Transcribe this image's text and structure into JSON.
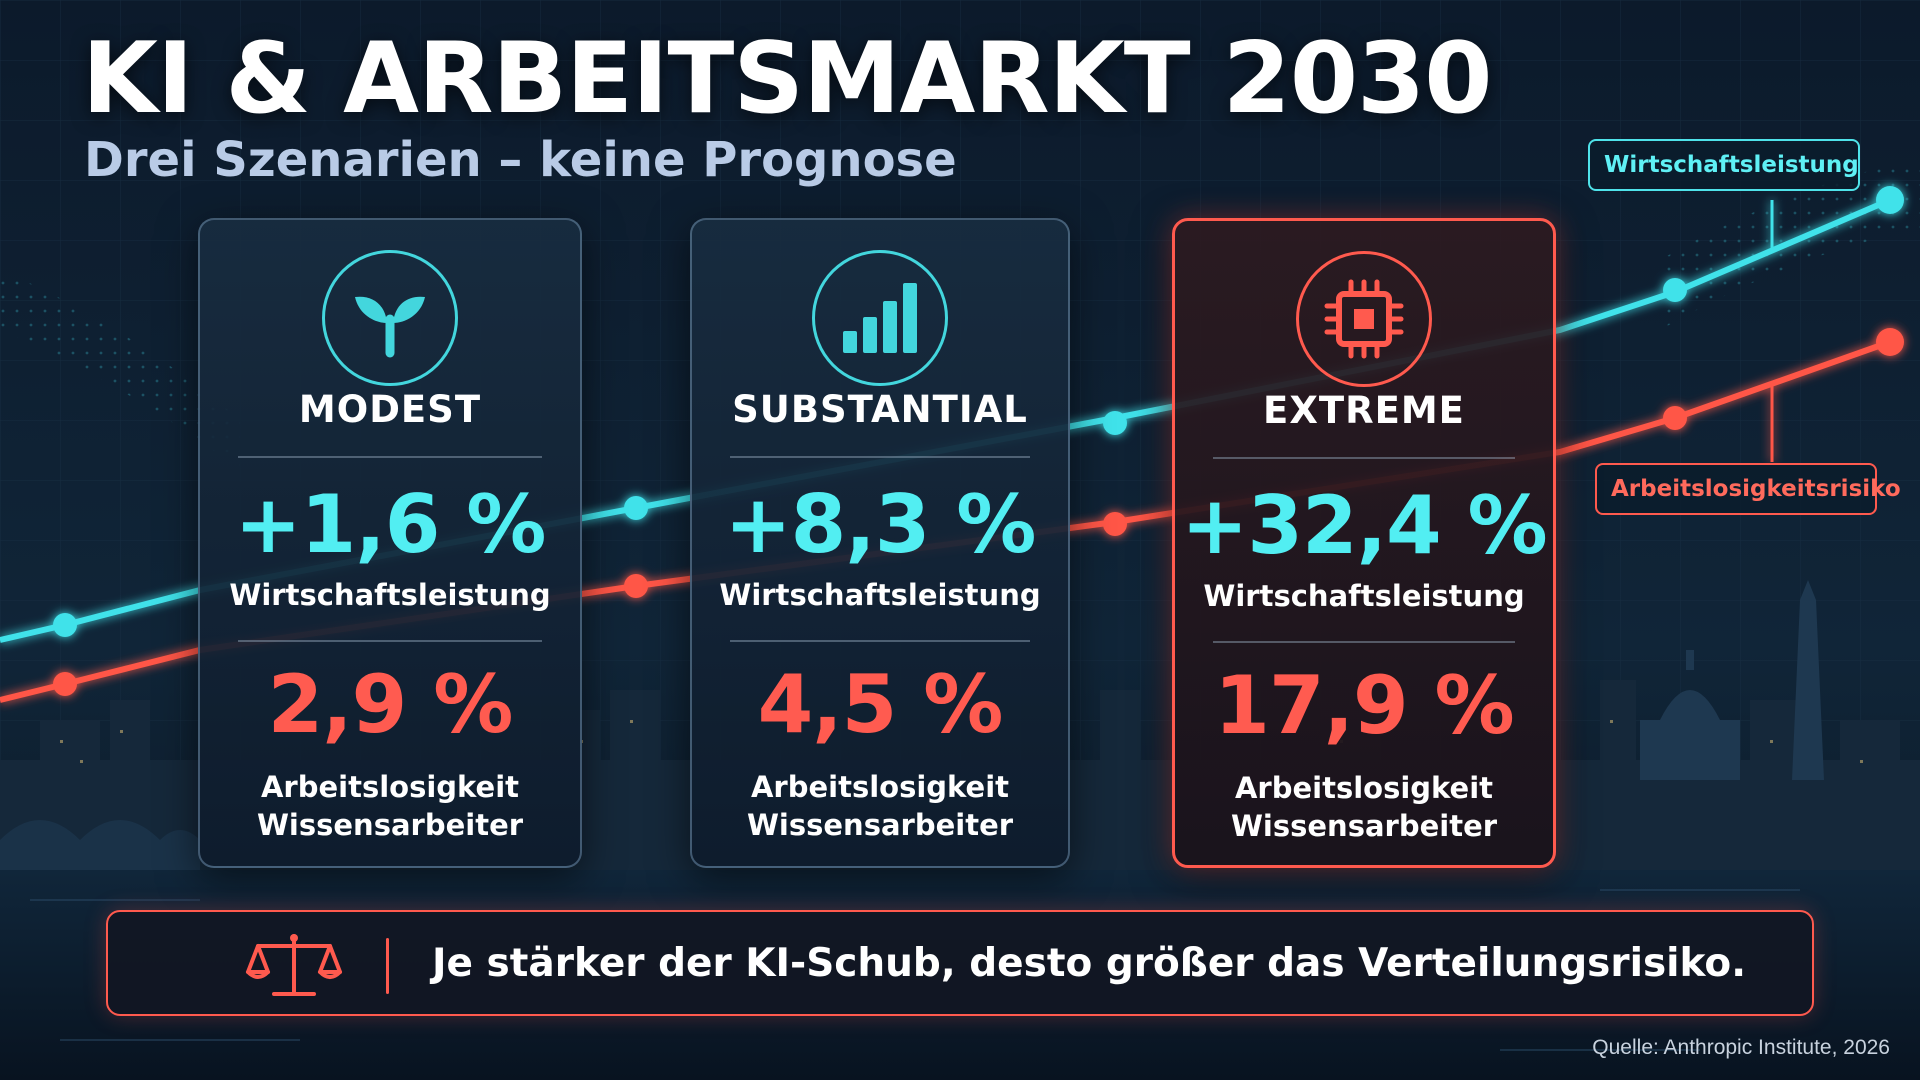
{
  "header": {
    "title": "KI & ARBEITSMARKT 2030",
    "subtitle": "Drei Szenarien – keine Prognose"
  },
  "legend": {
    "economic": "Wirtschaftsleistung",
    "risk": "Arbeitslosigkeitsrisiko"
  },
  "colors": {
    "accent_cyan": "#52eef2",
    "accent_red": "#ff5b50",
    "background": "#0b1828"
  },
  "scenarios": [
    {
      "name": "MODEST",
      "icon": "sprout-icon",
      "economic_value": "+1,6 %",
      "economic_label": "Wirtschaftsleistung",
      "unemployment_value": "2,9 %",
      "unemployment_label_1": "Arbeitslosigkeit",
      "unemployment_label_2": "Wissensarbeiter"
    },
    {
      "name": "SUBSTANTIAL",
      "icon": "bar-chart-icon",
      "economic_value": "+8,3 %",
      "economic_label": "Wirtschaftsleistung",
      "unemployment_value": "4,5 %",
      "unemployment_label_1": "Arbeitslosigkeit",
      "unemployment_label_2": "Wissensarbeiter"
    },
    {
      "name": "EXTREME",
      "icon": "chip-icon",
      "economic_value": "+32,4 %",
      "economic_label": "Wirtschaftsleistung",
      "unemployment_value": "17,9 %",
      "unemployment_label_1": "Arbeitslosigkeit",
      "unemployment_label_2": "Wissensarbeiter"
    }
  ],
  "footer": {
    "message": "Je stärker der KI-Schub, desto größer das Verteilungsrisiko.",
    "icon": "scale-icon",
    "source": "Quelle: Anthropic Institute, 2026"
  }
}
